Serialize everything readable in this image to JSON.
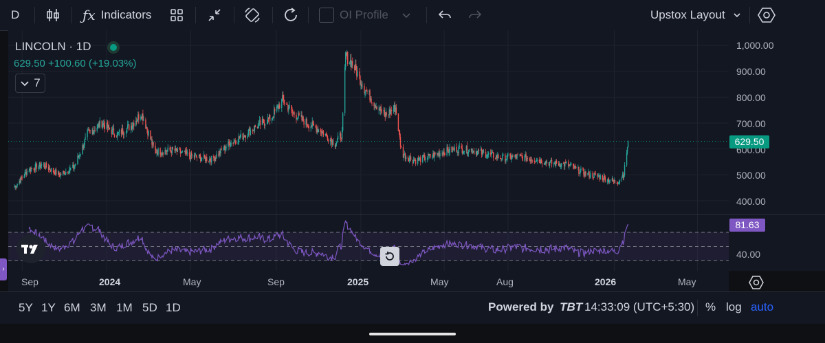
{
  "toolbar": {
    "interval": "D",
    "indicators_label": "Indicators",
    "oi_profile_label": "OI Profile",
    "layout_label": "Upstox Layout"
  },
  "legend": {
    "symbol": "LINCOLN · 1D",
    "price_line": "629.50  +100.60 (+19.03%)",
    "collapse_count": "7"
  },
  "price_axis": {
    "ticks": [
      "1,000.00",
      "900.00",
      "800.00",
      "700.00",
      "600.00",
      "500.00",
      "400.00"
    ],
    "tick_values": [
      1000,
      900,
      800,
      700,
      600,
      500,
      400
    ],
    "last_price": "629.50",
    "rsi_value": "81.63",
    "rsi_tick": "40.00"
  },
  "time_axis": {
    "labels": [
      "Sep",
      "2024",
      "May",
      "Sep",
      "2025",
      "May",
      "Aug",
      "2026",
      "May"
    ],
    "bold": [
      false,
      true,
      false,
      false,
      true,
      false,
      false,
      true,
      false
    ]
  },
  "bottom": {
    "ranges": [
      "5Y",
      "1Y",
      "6M",
      "3M",
      "1M",
      "5D",
      "1D"
    ],
    "powered_by": "Powered by",
    "brand": "TBT",
    "clock": "14:33:09 (UTC+5:30)",
    "percent": "%",
    "log": "log",
    "auto": "auto"
  },
  "colors": {
    "up": "#26a69a",
    "down": "#ef5350",
    "rsi_line": "#7e57c2",
    "accent": "#2962ff"
  },
  "chart_data": [
    {
      "type": "candlestick",
      "symbol": "LINCOLN",
      "interval": "1D",
      "ylim": [
        370,
        1020
      ],
      "last": 629.5,
      "anchors": [
        [
          "2023-08-20",
          450
        ],
        [
          "2023-09-10",
          520
        ],
        [
          "2023-10-01",
          540
        ],
        [
          "2023-10-25",
          500
        ],
        [
          "2023-11-15",
          530
        ],
        [
          "2023-12-05",
          660
        ],
        [
          "2023-12-25",
          700
        ],
        [
          "2024-01-15",
          655
        ],
        [
          "2024-02-05",
          690
        ],
        [
          "2024-02-20",
          740
        ],
        [
          "2024-03-10",
          590
        ],
        [
          "2024-04-05",
          595
        ],
        [
          "2024-05-05",
          570
        ],
        [
          "2024-06-01",
          560
        ],
        [
          "2024-06-25",
          620
        ],
        [
          "2024-07-15",
          650
        ],
        [
          "2024-08-05",
          690
        ],
        [
          "2024-08-25",
          720
        ],
        [
          "2024-09-10",
          790
        ],
        [
          "2024-09-25",
          740
        ],
        [
          "2024-10-15",
          700
        ],
        [
          "2024-11-05",
          670
        ],
        [
          "2024-11-25",
          620
        ],
        [
          "2024-12-05",
          660
        ],
        [
          "2024-12-10",
          960
        ],
        [
          "2024-12-20",
          930
        ],
        [
          "2025-01-05",
          840
        ],
        [
          "2025-01-20",
          780
        ],
        [
          "2025-02-05",
          730
        ],
        [
          "2025-02-20",
          760
        ],
        [
          "2025-03-01",
          580
        ],
        [
          "2025-03-20",
          555
        ],
        [
          "2025-04-10",
          570
        ],
        [
          "2025-05-01",
          590
        ],
        [
          "2025-05-20",
          600
        ],
        [
          "2025-06-10",
          595
        ],
        [
          "2025-07-01",
          580
        ],
        [
          "2025-07-25",
          565
        ],
        [
          "2025-08-15",
          570
        ],
        [
          "2025-09-10",
          560
        ],
        [
          "2025-10-01",
          545
        ],
        [
          "2025-10-25",
          540
        ],
        [
          "2025-11-20",
          505
        ],
        [
          "2025-12-15",
          490
        ],
        [
          "2026-01-05",
          470
        ],
        [
          "2026-01-15",
          505
        ],
        [
          "2026-01-21",
          629.5
        ]
      ]
    },
    {
      "type": "line",
      "name": "RSI",
      "last": 81.63,
      "levels": [
        70,
        50,
        30
      ],
      "ylim": [
        20,
        90
      ]
    }
  ]
}
